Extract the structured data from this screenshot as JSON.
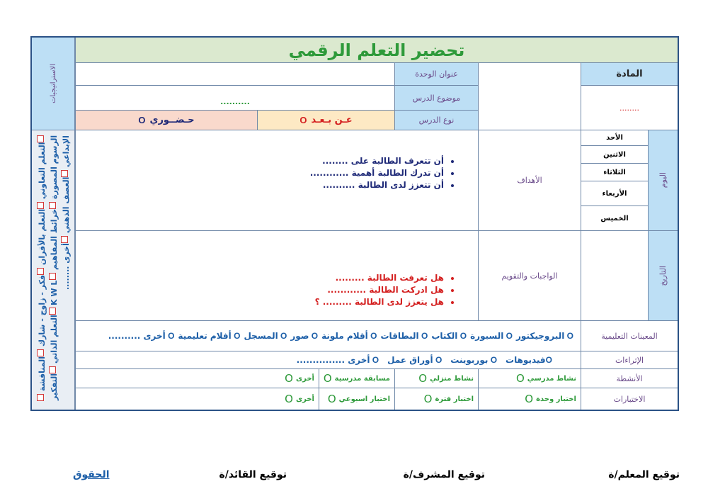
{
  "title": "تحضير التعلم الرقمي",
  "strategies": {
    "header": "الاستراتيجيات",
    "items": [
      "التعلم التعاوني",
      "التعلم بالأقران",
      "فكر - زاوج - شارك",
      "المناقشة",
      "الرسوم المصورة",
      "خرائط المفاهيم",
      "K W L",
      "التعلم الذاتي",
      "التفكير الإبداعي",
      "العصف الذهني",
      "أخرى ........"
    ]
  },
  "subject": {
    "label": "المادة",
    "value": "........"
  },
  "unit_title": {
    "label": "عنوان الوحدة",
    "value": ""
  },
  "lesson_topic": {
    "label": "موضوع الدرس",
    "value": ".........."
  },
  "lesson_type": {
    "label": "نوع الدرس",
    "remote": "عـن بـعـد",
    "in_person": "حـضــوري",
    "mark": "O"
  },
  "days": {
    "label": "اليوم",
    "items": [
      "الأحد",
      "الاثنين",
      "الثلاثاء",
      "الأربعاء",
      "الخميس"
    ]
  },
  "date": {
    "label": "التاريخ"
  },
  "objectives": {
    "label": "الأهداف",
    "items": [
      "أن تتعرف الطالبة على ........",
      "أن تدرك الطالبة أهمية ............",
      "أن تتعزز لدى الطالبة  .........."
    ]
  },
  "homework": {
    "label": "الواجبات والتقويم",
    "items": [
      "هل تعرفت الطالبة .........",
      "هل ادركت الطالبة ............",
      "هل  يتعزز لدى الطالبة  ......... ؟"
    ]
  },
  "aids": {
    "label": "المعينات التعليمية",
    "items": [
      "البروجيكتور",
      "السبورة",
      "الكتاب",
      "البطاقات",
      "أقلام ملونة",
      "صور",
      "المسجل",
      "أفلام تعليمية",
      "أخرى .........."
    ]
  },
  "enrichment": {
    "label": "الإثراءات",
    "items": [
      "فيديوهات",
      "بوربوينت",
      "أوراق عمل",
      "أخرى ..............."
    ]
  },
  "activities": {
    "label": "الأنشطة",
    "items": [
      "نشاط مدرسي",
      "نشاط منزلي",
      "مسابقة مدرسية",
      "أخرى"
    ]
  },
  "tests": {
    "label": "الاختبارات",
    "items": [
      "اختبار وحدة",
      "اختبار فترة",
      "اختبار اسبوعي",
      "أخرى"
    ]
  },
  "footer": {
    "teacher": "توقيع المعلم/ة",
    "supervisor": "توقيع المشرف/ة",
    "leader": "توقيع القائد/ة",
    "rights": "الحقوق"
  },
  "colors": {
    "title_green": "#2e9a3a",
    "label_blue": "#bddff5",
    "title_bg": "#dbe9cf",
    "remote_bg": "#fde9c4",
    "in_person_bg": "#f9d9cc",
    "border": "#2b5286"
  }
}
